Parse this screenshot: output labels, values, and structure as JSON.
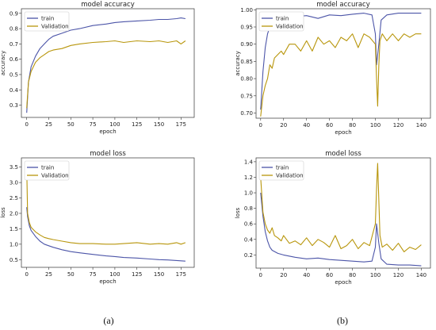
{
  "captions": [
    "(a)",
    "(b)"
  ],
  "chart_data": [
    {
      "type": "line",
      "title": "model accuracy",
      "xlabel": "epoch",
      "ylabel": "accuracy",
      "xlim": [
        -6,
        190
      ],
      "ylim": [
        0.22,
        0.93
      ],
      "xticks": [
        0,
        25,
        50,
        75,
        100,
        125,
        150,
        175
      ],
      "yticks": [
        0.3,
        0.4,
        0.5,
        0.6,
        0.7,
        0.8,
        0.9
      ],
      "ytick_labels": [
        "0.3",
        "0.4",
        "0.5",
        "0.6",
        "0.7",
        "0.8",
        "0.9"
      ],
      "legend": "top-left",
      "grid": false,
      "series": [
        {
          "name": "train",
          "color": "#4c55a8",
          "x": [
            0,
            2,
            5,
            10,
            15,
            20,
            25,
            30,
            40,
            50,
            60,
            75,
            90,
            100,
            110,
            125,
            140,
            150,
            160,
            170,
            175,
            180
          ],
          "y": [
            0.25,
            0.45,
            0.55,
            0.62,
            0.67,
            0.7,
            0.73,
            0.75,
            0.77,
            0.79,
            0.8,
            0.82,
            0.83,
            0.84,
            0.845,
            0.85,
            0.855,
            0.86,
            0.86,
            0.865,
            0.87,
            0.865
          ]
        },
        {
          "name": "Validation",
          "color": "#b8960c",
          "x": [
            0,
            2,
            5,
            10,
            15,
            20,
            25,
            30,
            40,
            50,
            60,
            75,
            90,
            100,
            110,
            125,
            140,
            150,
            160,
            170,
            175,
            180
          ],
          "y": [
            0.28,
            0.45,
            0.52,
            0.58,
            0.61,
            0.63,
            0.65,
            0.66,
            0.67,
            0.69,
            0.7,
            0.71,
            0.715,
            0.72,
            0.71,
            0.72,
            0.715,
            0.72,
            0.71,
            0.72,
            0.7,
            0.72
          ]
        }
      ]
    },
    {
      "type": "line",
      "title": "model loss",
      "xlabel": "epoch",
      "ylabel": "loss",
      "xlim": [
        -6,
        190
      ],
      "ylim": [
        0.25,
        3.8
      ],
      "xticks": [
        0,
        25,
        50,
        75,
        100,
        125,
        150,
        175
      ],
      "yticks": [
        0.5,
        1.0,
        1.5,
        2.0,
        2.5,
        3.0,
        3.5
      ],
      "ytick_labels": [
        "0.5",
        "1.0",
        "1.5",
        "2.0",
        "2.5",
        "3.0",
        "3.5"
      ],
      "legend": "top-left",
      "grid": false,
      "series": [
        {
          "name": "train",
          "color": "#4c55a8",
          "x": [
            0,
            1,
            3,
            5,
            10,
            15,
            20,
            25,
            30,
            40,
            50,
            60,
            75,
            90,
            100,
            110,
            125,
            140,
            150,
            160,
            170,
            175,
            180
          ],
          "y": [
            2.2,
            1.9,
            1.6,
            1.45,
            1.25,
            1.1,
            1.0,
            0.95,
            0.9,
            0.82,
            0.76,
            0.72,
            0.67,
            0.62,
            0.6,
            0.57,
            0.55,
            0.52,
            0.5,
            0.49,
            0.47,
            0.46,
            0.45
          ]
        },
        {
          "name": "Validation",
          "color": "#b8960c",
          "x": [
            0,
            1,
            3,
            5,
            10,
            15,
            20,
            25,
            30,
            40,
            50,
            60,
            75,
            90,
            100,
            110,
            125,
            140,
            150,
            160,
            170,
            175,
            180
          ],
          "y": [
            3.5,
            2.0,
            1.7,
            1.55,
            1.4,
            1.3,
            1.22,
            1.18,
            1.15,
            1.1,
            1.05,
            1.02,
            1.02,
            1.0,
            1.0,
            1.02,
            1.05,
            1.0,
            1.02,
            1.0,
            1.05,
            1.0,
            1.05
          ]
        }
      ]
    },
    {
      "type": "line",
      "title": "model accuracy",
      "xlabel": "epoch",
      "ylabel": "accuracy",
      "xlim": [
        -4,
        148
      ],
      "ylim": [
        0.685,
        1.003
      ],
      "xticks": [
        0,
        20,
        40,
        60,
        80,
        100,
        120,
        140
      ],
      "yticks": [
        0.7,
        0.75,
        0.8,
        0.85,
        0.9,
        0.95,
        1.0
      ],
      "ytick_labels": [
        "0.70",
        "0.75",
        "0.80",
        "0.85",
        "0.90",
        "0.95",
        "1.00"
      ],
      "legend": "top-left",
      "grid": false,
      "series": [
        {
          "name": "train",
          "color": "#4c55a8",
          "x": [
            0,
            2,
            4,
            6,
            8,
            10,
            15,
            20,
            30,
            40,
            50,
            60,
            70,
            80,
            90,
            97,
            100,
            101,
            103,
            105,
            110,
            120,
            130,
            140
          ],
          "y": [
            0.71,
            0.82,
            0.89,
            0.93,
            0.95,
            0.96,
            0.97,
            0.975,
            0.98,
            0.983,
            0.975,
            0.985,
            0.983,
            0.987,
            0.99,
            0.985,
            0.93,
            0.84,
            0.9,
            0.97,
            0.985,
            0.99,
            0.99,
            0.99
          ]
        },
        {
          "name": "Validation",
          "color": "#b8960c",
          "x": [
            0,
            2,
            4,
            6,
            8,
            10,
            12,
            15,
            18,
            20,
            25,
            30,
            35,
            40,
            45,
            50,
            55,
            60,
            65,
            70,
            75,
            80,
            85,
            90,
            95,
            100,
            101,
            102,
            103,
            104,
            106,
            110,
            115,
            120,
            125,
            130,
            135,
            140
          ],
          "y": [
            0.69,
            0.75,
            0.78,
            0.8,
            0.84,
            0.83,
            0.86,
            0.87,
            0.88,
            0.87,
            0.9,
            0.9,
            0.88,
            0.91,
            0.88,
            0.92,
            0.9,
            0.91,
            0.89,
            0.92,
            0.91,
            0.93,
            0.89,
            0.93,
            0.92,
            0.9,
            0.8,
            0.72,
            0.84,
            0.91,
            0.93,
            0.91,
            0.93,
            0.91,
            0.93,
            0.92,
            0.93,
            0.93
          ]
        }
      ]
    },
    {
      "type": "line",
      "title": "model loss",
      "xlabel": "epoch",
      "ylabel": "loss",
      "xlim": [
        -4,
        148
      ],
      "ylim": [
        0.03,
        1.45
      ],
      "xticks": [
        0,
        20,
        40,
        60,
        80,
        100,
        120,
        140
      ],
      "yticks": [
        0.2,
        0.4,
        0.6,
        0.8,
        1.0,
        1.2,
        1.4
      ],
      "ytick_labels": [
        "0.2",
        "0.4",
        "0.6",
        "0.8",
        "1.0",
        "1.2",
        "1.4"
      ],
      "legend": "top-left",
      "grid": false,
      "series": [
        {
          "name": "train",
          "color": "#4c55a8",
          "x": [
            0,
            2,
            4,
            6,
            8,
            10,
            15,
            20,
            30,
            40,
            50,
            60,
            70,
            80,
            90,
            97,
            100,
            101,
            103,
            105,
            110,
            120,
            130,
            140
          ],
          "y": [
            1.0,
            0.7,
            0.5,
            0.38,
            0.3,
            0.26,
            0.22,
            0.2,
            0.17,
            0.15,
            0.16,
            0.14,
            0.13,
            0.12,
            0.11,
            0.12,
            0.3,
            0.6,
            0.35,
            0.15,
            0.08,
            0.07,
            0.07,
            0.06
          ]
        },
        {
          "name": "Validation",
          "color": "#b8960c",
          "x": [
            0,
            2,
            4,
            6,
            8,
            10,
            12,
            15,
            18,
            20,
            25,
            30,
            35,
            40,
            45,
            50,
            55,
            60,
            65,
            70,
            75,
            80,
            85,
            90,
            95,
            100,
            101,
            102,
            103,
            104,
            106,
            110,
            115,
            120,
            125,
            130,
            135,
            140
          ],
          "y": [
            1.2,
            0.75,
            0.6,
            0.52,
            0.48,
            0.55,
            0.45,
            0.42,
            0.38,
            0.45,
            0.35,
            0.38,
            0.33,
            0.42,
            0.32,
            0.4,
            0.36,
            0.3,
            0.45,
            0.28,
            0.32,
            0.4,
            0.28,
            0.36,
            0.32,
            0.6,
            1.05,
            1.38,
            0.9,
            0.45,
            0.3,
            0.34,
            0.26,
            0.35,
            0.24,
            0.3,
            0.27,
            0.33
          ]
        }
      ]
    }
  ]
}
